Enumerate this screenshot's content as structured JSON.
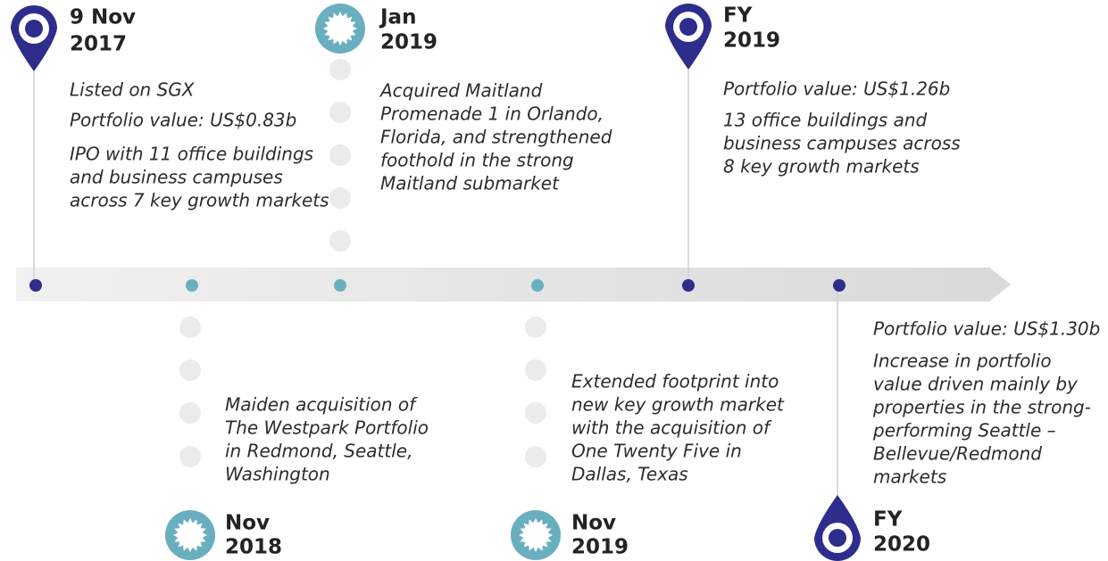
{
  "events": [
    {
      "date": [
        "9 Nov",
        "2017"
      ],
      "paragraphs": [
        [
          "Listed on SGX"
        ],
        [
          "Portfolio value: US$0.83b"
        ],
        [
          "IPO with 11 office buildings",
          "and business campuses",
          "across 7 key growth markets"
        ]
      ]
    },
    {
      "date": [
        "Nov",
        "2018"
      ],
      "paragraphs": [
        [
          "Maiden acquisition of",
          "The Westpark Portfolio",
          "in Redmond, Seattle,",
          "Washington"
        ]
      ]
    },
    {
      "date": [
        "Jan",
        "2019"
      ],
      "paragraphs": [
        [
          "Acquired Maitland",
          "Promenade 1 in Orlando,",
          "Florida, and strengthened",
          "foothold in the strong",
          "Maitland submarket"
        ]
      ]
    },
    {
      "date": [
        "Nov",
        "2019"
      ],
      "paragraphs": [
        [
          "Extended footprint into",
          "new key growth market",
          "with the acquisition of",
          "One Twenty Five in",
          "Dallas, Texas"
        ]
      ]
    },
    {
      "date": [
        "FY",
        "2019"
      ],
      "paragraphs": [
        [
          "Portfolio value: US$1.26b"
        ],
        [
          "13 office buildings and",
          "business campuses across",
          "8 key growth markets"
        ]
      ]
    },
    {
      "date": [
        "FY",
        "2020"
      ],
      "paragraphs": [
        [
          "Portfolio value: US$1.30b"
        ],
        [
          "Increase in portfolio",
          "value driven mainly by",
          "properties in the strong-",
          "performing Seattle –",
          "Bellevue/Redmond",
          "markets"
        ]
      ]
    }
  ]
}
